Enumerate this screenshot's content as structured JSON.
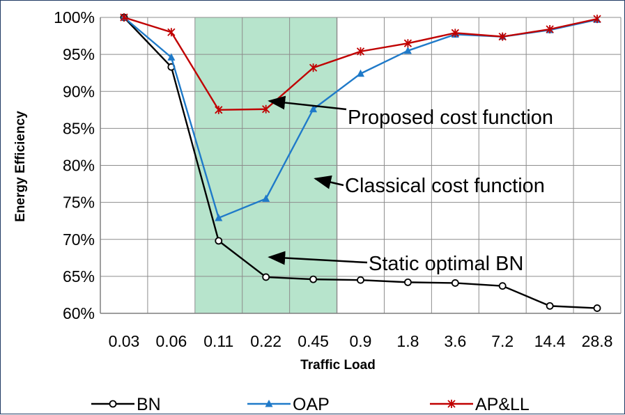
{
  "chart_data": {
    "type": "line",
    "categories": [
      "0.03",
      "0.06",
      "0.11",
      "0.22",
      "0.45",
      "0.9",
      "1.8",
      "3.6",
      "7.2",
      "14.4",
      "28.8"
    ],
    "xlabel": "Traffic Load",
    "ylabel": "Energy Efficiency",
    "ylim": [
      60,
      100
    ],
    "y_ticks": [
      60,
      65,
      70,
      75,
      80,
      85,
      90,
      95,
      100
    ],
    "y_tick_labels": [
      "60%",
      "65%",
      "70%",
      "75%",
      "80%",
      "85%",
      "90%",
      "95%",
      "100%"
    ],
    "grid": true,
    "highlight_band": {
      "from": "0.11",
      "to": "0.9",
      "color": "#b7e4cc"
    },
    "series": [
      {
        "name": "BN",
        "color": "#000000",
        "marker": "circle",
        "values": [
          100,
          93.3,
          69.8,
          64.9,
          64.6,
          64.5,
          64.2,
          64.1,
          63.7,
          61.0,
          60.7
        ]
      },
      {
        "name": "OAP",
        "color": "#1f7ac9",
        "marker": "triangle",
        "values": [
          100,
          94.6,
          72.9,
          75.5,
          87.6,
          92.4,
          95.5,
          97.7,
          97.4,
          98.3,
          99.7
        ]
      },
      {
        "name": "AP&LL",
        "color": "#c00000",
        "marker": "star",
        "values": [
          100,
          98.0,
          87.5,
          87.6,
          93.2,
          95.4,
          96.5,
          97.9,
          97.4,
          98.4,
          99.8
        ]
      }
    ],
    "annotations": [
      {
        "text": "Proposed cost function",
        "points_to": {
          "category": "0.22",
          "value": 88.7
        }
      },
      {
        "text": "Classical cost function",
        "points_to": {
          "category": "0.45",
          "value": 78.2
        }
      },
      {
        "text": "Static optimal BN",
        "points_to": {
          "category": "0.22",
          "value": 67.6
        }
      }
    ],
    "legend_position": "bottom"
  }
}
